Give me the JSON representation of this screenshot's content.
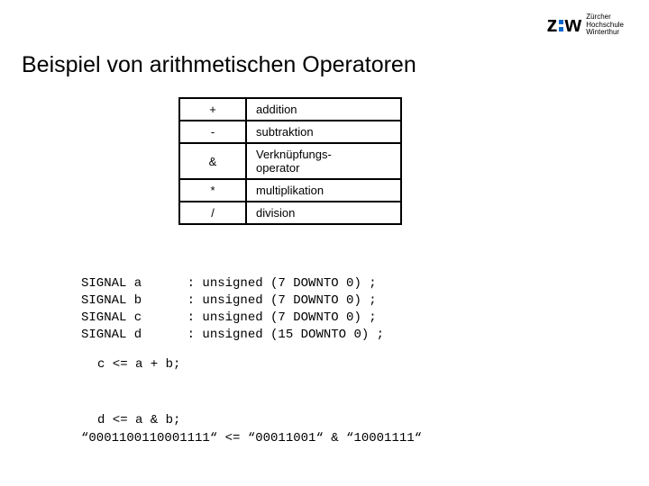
{
  "logo": {
    "mark_left": "z",
    "mark_right": "w",
    "line1": "Zürcher",
    "line2": "Hochschule",
    "line3": "Winterthur"
  },
  "title": "Beispiel von arithmetischen Operatoren",
  "table": {
    "rows": [
      {
        "symbol": "+",
        "desc": "addition"
      },
      {
        "symbol": "-",
        "desc": "subtraktion"
      },
      {
        "symbol": "&",
        "desc": "Verknüpfungs-\noperator"
      },
      {
        "symbol": "*",
        "desc": "multiplikation"
      },
      {
        "symbol": "/",
        "desc": "division"
      }
    ]
  },
  "code": {
    "signals": "SIGNAL a      : unsigned (7 DOWNTO 0) ;\nSIGNAL b      : unsigned (7 DOWNTO 0) ;\nSIGNAL c      : unsigned (7 DOWNTO 0) ;\nSIGNAL d      : unsigned (15 DOWNTO 0) ;",
    "assign1": "c <= a + b;",
    "assign2": "d <= a & b;",
    "concat_example": "“0001100110001111“ <= “00011001“ & “10001111“"
  },
  "colors": {
    "accent": "#0066cc",
    "border": "#000000",
    "text": "#000000",
    "background": "#ffffff"
  }
}
